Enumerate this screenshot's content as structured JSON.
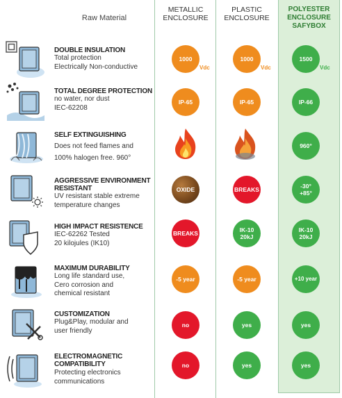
{
  "header": {
    "raw_material": "Raw Material",
    "metallic": [
      "METALLIC",
      "ENCLOSURE"
    ],
    "plastic": [
      "PLASTIC",
      "ENCLOSURE"
    ],
    "polyester": [
      "POLYESTER",
      "ENCLOSURE",
      "SAFYBOX"
    ]
  },
  "colors": {
    "orange": "#ef8c1e",
    "green": "#3fae4a",
    "red": "#e3172a",
    "highlight": "#dcefd9"
  },
  "rows": [
    {
      "icon": "double-insulation-icon",
      "title": [
        "DOUBLE INSULATION"
      ],
      "desc": [
        "Total protection",
        "Electrically Non-conductive"
      ],
      "metallic": {
        "value": "1000",
        "unit": "Vdc",
        "color": "orange"
      },
      "plastic": {
        "value": "1000",
        "unit": "Vdc",
        "color": "orange"
      },
      "polyester": {
        "value": "1500",
        "unit": "Vdc",
        "color": "green"
      }
    },
    {
      "icon": "total-protection-icon",
      "title": [
        "TOTAL DEGREE PROTECTION"
      ],
      "desc": [
        "no water, nor dust",
        "IEC-62208"
      ],
      "metallic": {
        "value": "IP-65",
        "color": "orange"
      },
      "plastic": {
        "value": "IP-65",
        "color": "orange"
      },
      "polyester": {
        "value": "IP-66",
        "color": "green"
      }
    },
    {
      "icon": "self-extinguishing-icon",
      "title": [
        "SELF EXTINGUISHING"
      ],
      "desc": [
        "Does not feed flames and",
        "100% halogen free. 960°"
      ],
      "metallic": {
        "value": "flame-icon"
      },
      "plastic": {
        "value": "flame-icon"
      },
      "polyester": {
        "value": "960°",
        "color": "green"
      }
    },
    {
      "icon": "environment-icon",
      "title": [
        "AGGRESSIVE ENVIRONMENT",
        "RESISTANT"
      ],
      "desc": [
        "UV resistant stable extreme",
        "temperature changes"
      ],
      "metallic": {
        "value": "OXIDE"
      },
      "plastic": {
        "value": "BREAKS",
        "color": "red"
      },
      "polyester": {
        "value": "-30°",
        "value2": "+85°",
        "color": "green"
      }
    },
    {
      "icon": "impact-icon",
      "title": [
        "HIGH IMPACT RESISTENCE"
      ],
      "desc": [
        "IEC-62262 Tested",
        "20 kilojules (IK10)"
      ],
      "metallic": {
        "value": "BREAKS",
        "color": "red"
      },
      "plastic": {
        "value": "IK-10",
        "value2": "20kJ",
        "color": "green"
      },
      "polyester": {
        "value": "IK-10",
        "value2": "20kJ",
        "color": "green"
      }
    },
    {
      "icon": "durability-icon",
      "title": [
        "MAXIMUM DURABILITY"
      ],
      "desc": [
        "Long life standard use,",
        "Cero corrosion and",
        "chemical resistant"
      ],
      "metallic": {
        "value": "-5 year",
        "color": "orange"
      },
      "plastic": {
        "value": "-5 year",
        "color": "orange"
      },
      "polyester": {
        "value": "+10 year",
        "color": "green"
      }
    },
    {
      "icon": "customization-icon",
      "title": [
        "CUSTOMIZATION"
      ],
      "desc": [
        "Plug&Play, modular and",
        "user friendly"
      ],
      "metallic": {
        "value": "no",
        "color": "red"
      },
      "plastic": {
        "value": "yes",
        "color": "green"
      },
      "polyester": {
        "value": "yes",
        "color": "green"
      }
    },
    {
      "icon": "electromagnetic-icon",
      "title": [
        "ELECTROMAGNETIC",
        "COMPATIBILITY"
      ],
      "desc": [
        "Protecting electronics",
        "communications"
      ],
      "metallic": {
        "value": "no",
        "color": "red"
      },
      "plastic": {
        "value": "yes",
        "color": "green"
      },
      "polyester": {
        "value": "yes",
        "color": "green"
      }
    }
  ]
}
